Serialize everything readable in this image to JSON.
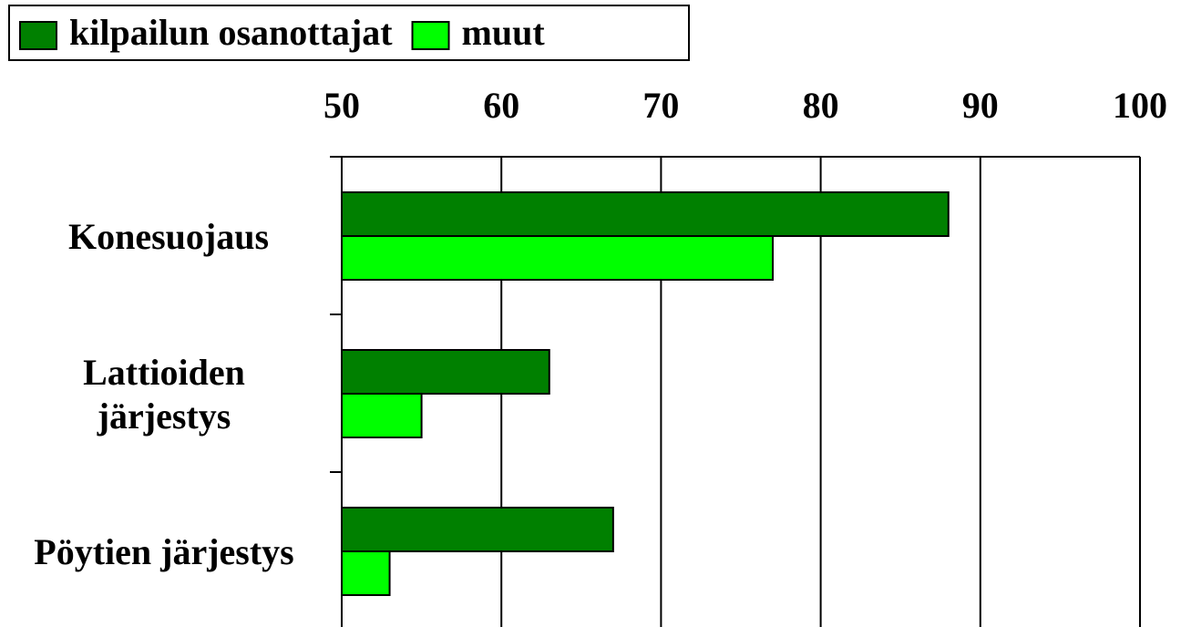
{
  "chart_data": {
    "type": "bar",
    "orientation": "horizontal",
    "categories": [
      "Konesuojaus",
      "Lattioiden järjestys",
      "Pöytien järjestys"
    ],
    "series": [
      {
        "name": "kilpailun osanottajat",
        "color": "#008000",
        "values": [
          88,
          63,
          67
        ]
      },
      {
        "name": "muut",
        "color": "#00ff00",
        "values": [
          77,
          55,
          53
        ]
      }
    ],
    "xlim": [
      50,
      100
    ],
    "xticks": [
      50,
      60,
      70,
      80,
      90,
      100
    ],
    "grid": true,
    "legend": "top-left"
  }
}
